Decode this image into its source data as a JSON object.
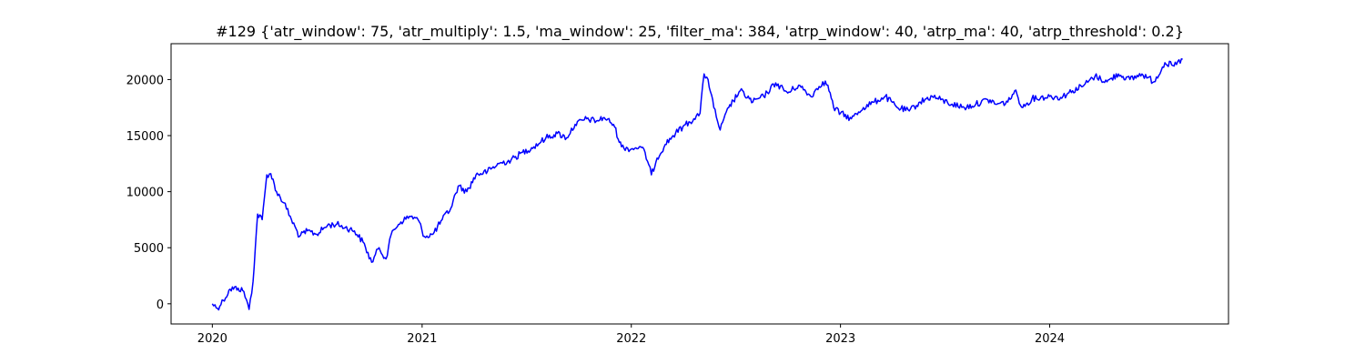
{
  "chart_data": {
    "type": "line",
    "title": "#129 {'atr_window': 75, 'atr_multiply': 1.5, 'ma_window': 25, 'filter_ma': 384, 'atrp_window': 40, 'atrp_ma': 40, 'atrp_threshold': 0.2}",
    "xlabel": "",
    "ylabel": "",
    "xlim": [
      "2019-10-21",
      "2024-11-08"
    ],
    "ylim": [
      -1800,
      23200
    ],
    "grid": false,
    "legend": "none",
    "x_ticks": [
      "2020",
      "2021",
      "2022",
      "2023",
      "2024"
    ],
    "y_ticks": [
      "0",
      "5000",
      "10000",
      "15000",
      "20000"
    ],
    "series": [
      {
        "color": "#0000ff",
        "points": [
          [
            "2020-01-01",
            0
          ],
          [
            "2020-01-10",
            -400
          ],
          [
            "2020-01-20",
            300
          ],
          [
            "2020-02-01",
            1300
          ],
          [
            "2020-02-15",
            1400
          ],
          [
            "2020-02-25",
            1100
          ],
          [
            "2020-03-05",
            -500
          ],
          [
            "2020-03-12",
            2000
          ],
          [
            "2020-03-20",
            8000
          ],
          [
            "2020-03-28",
            7500
          ],
          [
            "2020-04-05",
            11500
          ],
          [
            "2020-04-12",
            11600
          ],
          [
            "2020-04-22",
            10000
          ],
          [
            "2020-05-05",
            9000
          ],
          [
            "2020-05-18",
            7500
          ],
          [
            "2020-06-01",
            6000
          ],
          [
            "2020-06-15",
            6500
          ],
          [
            "2020-07-01",
            6200
          ],
          [
            "2020-07-20",
            7000
          ],
          [
            "2020-08-05",
            7100
          ],
          [
            "2020-08-20",
            6800
          ],
          [
            "2020-09-05",
            6500
          ],
          [
            "2020-09-20",
            5500
          ],
          [
            "2020-10-05",
            3700
          ],
          [
            "2020-10-18",
            5000
          ],
          [
            "2020-10-30",
            4000
          ],
          [
            "2020-11-10",
            6500
          ],
          [
            "2020-11-25",
            7300
          ],
          [
            "2020-12-10",
            7800
          ],
          [
            "2020-12-25",
            7500
          ],
          [
            "2021-01-05",
            6000
          ],
          [
            "2021-01-20",
            6200
          ],
          [
            "2021-02-05",
            7500
          ],
          [
            "2021-02-20",
            8500
          ],
          [
            "2021-03-05",
            10500
          ],
          [
            "2021-03-20",
            10000
          ],
          [
            "2021-04-05",
            11500
          ],
          [
            "2021-04-25",
            11800
          ],
          [
            "2021-05-15",
            12500
          ],
          [
            "2021-06-05",
            12800
          ],
          [
            "2021-06-25",
            13500
          ],
          [
            "2021-07-15",
            14000
          ],
          [
            "2021-08-05",
            14800
          ],
          [
            "2021-08-25",
            15200
          ],
          [
            "2021-09-10",
            14800
          ],
          [
            "2021-09-25",
            16000
          ],
          [
            "2021-10-15",
            16500
          ],
          [
            "2021-11-01",
            16300
          ],
          [
            "2021-11-15",
            16600
          ],
          [
            "2021-12-01",
            16000
          ],
          [
            "2021-12-15",
            14000
          ],
          [
            "2022-01-01",
            13800
          ],
          [
            "2022-01-15",
            14000
          ],
          [
            "2022-01-25",
            13500
          ],
          [
            "2022-02-05",
            11500
          ],
          [
            "2022-02-15",
            13000
          ],
          [
            "2022-03-01",
            14200
          ],
          [
            "2022-03-15",
            15000
          ],
          [
            "2022-04-01",
            15800
          ],
          [
            "2022-04-20",
            16500
          ],
          [
            "2022-05-01",
            17000
          ],
          [
            "2022-05-08",
            20500
          ],
          [
            "2022-05-15",
            20000
          ],
          [
            "2022-05-25",
            17500
          ],
          [
            "2022-06-05",
            15500
          ],
          [
            "2022-06-20",
            17500
          ],
          [
            "2022-07-10",
            19000
          ],
          [
            "2022-08-01",
            18000
          ],
          [
            "2022-08-20",
            18500
          ],
          [
            "2022-09-10",
            19700
          ],
          [
            "2022-10-01",
            18800
          ],
          [
            "2022-10-20",
            19500
          ],
          [
            "2022-11-10",
            18500
          ],
          [
            "2022-12-01",
            19800
          ],
          [
            "2022-12-10",
            19500
          ],
          [
            "2022-12-20",
            17500
          ],
          [
            "2023-01-01",
            17000
          ],
          [
            "2023-01-20",
            16500
          ],
          [
            "2023-02-10",
            17500
          ],
          [
            "2023-03-01",
            18000
          ],
          [
            "2023-03-20",
            18500
          ],
          [
            "2023-04-10",
            17500
          ],
          [
            "2023-05-01",
            17200
          ],
          [
            "2023-05-20",
            18000
          ],
          [
            "2023-06-10",
            18500
          ],
          [
            "2023-06-25",
            18200
          ],
          [
            "2023-07-15",
            17800
          ],
          [
            "2023-08-05",
            17500
          ],
          [
            "2023-08-25",
            17800
          ],
          [
            "2023-09-15",
            18200
          ],
          [
            "2023-10-01",
            17800
          ],
          [
            "2023-10-20",
            18000
          ],
          [
            "2023-11-01",
            19000
          ],
          [
            "2023-11-15",
            17500
          ],
          [
            "2023-12-01",
            18300
          ],
          [
            "2024-01-01",
            18500
          ],
          [
            "2024-01-20",
            18400
          ],
          [
            "2024-02-10",
            19000
          ],
          [
            "2024-03-01",
            19500
          ],
          [
            "2024-03-20",
            20300
          ],
          [
            "2024-04-10",
            19800
          ],
          [
            "2024-04-30",
            20500
          ],
          [
            "2024-05-20",
            20000
          ],
          [
            "2024-06-10",
            20500
          ],
          [
            "2024-07-01",
            19800
          ],
          [
            "2024-07-20",
            21500
          ],
          [
            "2024-08-05",
            21200
          ],
          [
            "2024-08-20",
            21800
          ]
        ]
      }
    ]
  }
}
